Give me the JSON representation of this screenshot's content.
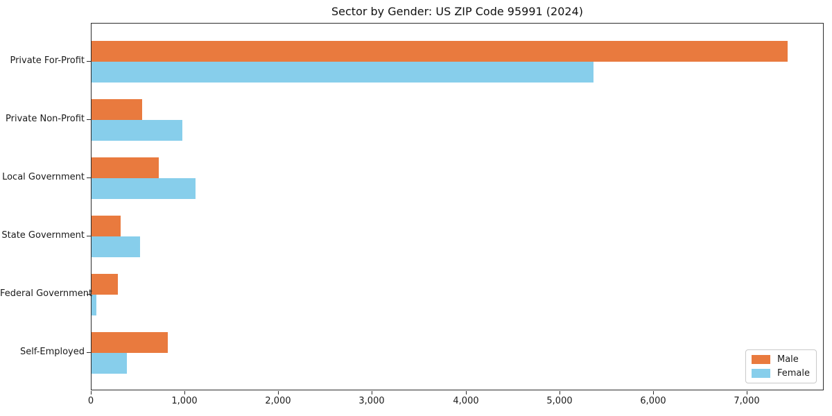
{
  "chart_data": {
    "type": "bar",
    "orientation": "horizontal",
    "title": "Sector by Gender: US ZIP Code 95991 (2024)",
    "categories": [
      "Private For-Profit",
      "Private Non-Profit",
      "Local Government",
      "State Government",
      "Federal Government",
      "Self-Employed"
    ],
    "series": [
      {
        "name": "Male",
        "color": "#E97A3E",
        "values": [
          7430,
          540,
          720,
          310,
          280,
          815
        ]
      },
      {
        "name": "Female",
        "color": "#87CEEB",
        "values": [
          5360,
          970,
          1110,
          520,
          50,
          380
        ]
      }
    ],
    "xlabel": "",
    "ylabel": "",
    "xlim": [
      0,
      7820
    ],
    "xticks": [
      0,
      1000,
      2000,
      3000,
      4000,
      5000,
      6000,
      7000
    ],
    "xtick_labels": [
      "0",
      "1,000",
      "2,000",
      "3,000",
      "4,000",
      "5,000",
      "6,000",
      "7,000"
    ],
    "grid": false,
    "legend": {
      "position": "lower right",
      "entries": [
        "Male",
        "Female"
      ]
    }
  }
}
